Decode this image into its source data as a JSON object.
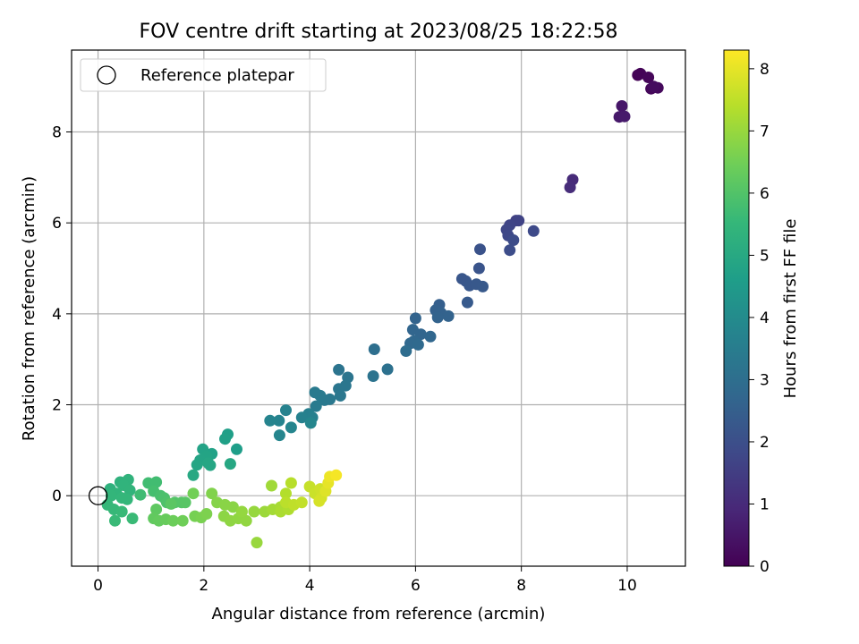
{
  "chart_data": {
    "type": "scatter",
    "title": "FOV centre drift starting at 2023/08/25 18:22:58",
    "xlabel": "Angular distance from reference (arcmin)",
    "ylabel": "Rotation from reference (arcmin)",
    "xlim": [
      -0.5,
      11.1
    ],
    "ylim": [
      -1.55,
      9.8
    ],
    "xticks": [
      0,
      2,
      4,
      6,
      8,
      10
    ],
    "yticks": [
      0,
      2,
      4,
      6,
      8
    ],
    "grid": true,
    "legend": {
      "position": "top-left",
      "entries": [
        "Reference platepar"
      ]
    },
    "reference_point": {
      "x": 0,
      "y": 0
    },
    "colorbar": {
      "label": "Hours from first FF file",
      "colormap": "viridis",
      "range": [
        0,
        8.3
      ],
      "ticks": [
        0,
        1,
        2,
        3,
        4,
        5,
        6,
        7,
        8
      ]
    },
    "points": [
      [
        10.2,
        9.25,
        0.05
      ],
      [
        10.25,
        9.28,
        0.08
      ],
      [
        10.4,
        9.2,
        0.12
      ],
      [
        10.45,
        8.95,
        0.15
      ],
      [
        10.58,
        8.97,
        0.2
      ],
      [
        10.5,
        9.0,
        0.25
      ],
      [
        9.9,
        8.57,
        0.5
      ],
      [
        9.85,
        8.33,
        0.55
      ],
      [
        9.95,
        8.34,
        0.6
      ],
      [
        8.97,
        6.95,
        1.0
      ],
      [
        8.92,
        6.78,
        1.05
      ],
      [
        7.9,
        6.05,
        1.6
      ],
      [
        7.95,
        6.05,
        1.65
      ],
      [
        7.78,
        5.95,
        1.7
      ],
      [
        7.72,
        5.85,
        1.75
      ],
      [
        7.75,
        5.72,
        1.8
      ],
      [
        8.23,
        5.82,
        1.85
      ],
      [
        7.85,
        5.62,
        1.9
      ],
      [
        7.78,
        5.4,
        1.95
      ],
      [
        7.22,
        5.42,
        2.1
      ],
      [
        7.2,
        5.0,
        2.15
      ],
      [
        6.88,
        4.77,
        2.2
      ],
      [
        6.95,
        4.72,
        2.22
      ],
      [
        7.02,
        4.62,
        2.25
      ],
      [
        7.15,
        4.65,
        2.28
      ],
      [
        7.27,
        4.6,
        2.3
      ],
      [
        6.98,
        4.25,
        2.35
      ],
      [
        6.45,
        4.2,
        2.5
      ],
      [
        6.38,
        4.08,
        2.55
      ],
      [
        6.48,
        4.02,
        2.58
      ],
      [
        6.62,
        3.95,
        2.6
      ],
      [
        6.42,
        3.92,
        2.62
      ],
      [
        6.0,
        3.9,
        2.65
      ],
      [
        5.95,
        3.65,
        2.7
      ],
      [
        6.1,
        3.55,
        2.72
      ],
      [
        6.28,
        3.5,
        2.75
      ],
      [
        5.97,
        3.4,
        2.78
      ],
      [
        5.9,
        3.35,
        2.8
      ],
      [
        6.05,
        3.32,
        2.82
      ],
      [
        5.22,
        3.22,
        3.0
      ],
      [
        5.82,
        3.18,
        2.95
      ],
      [
        4.55,
        2.77,
        3.2
      ],
      [
        4.72,
        2.6,
        3.22
      ],
      [
        5.47,
        2.78,
        3.1
      ],
      [
        5.2,
        2.63,
        3.15
      ],
      [
        4.68,
        2.42,
        3.25
      ],
      [
        4.55,
        2.35,
        3.28
      ],
      [
        4.58,
        2.2,
        3.3
      ],
      [
        4.38,
        2.12,
        3.35
      ],
      [
        4.28,
        2.1,
        3.38
      ],
      [
        4.2,
        2.2,
        3.4
      ],
      [
        4.1,
        2.27,
        3.42
      ],
      [
        4.12,
        1.97,
        3.45
      ],
      [
        3.98,
        1.8,
        3.6
      ],
      [
        4.05,
        1.72,
        3.62
      ],
      [
        3.85,
        1.72,
        3.65
      ],
      [
        3.55,
        1.88,
        3.7
      ],
      [
        3.42,
        1.65,
        3.72
      ],
      [
        3.25,
        1.65,
        3.75
      ],
      [
        3.65,
        1.5,
        3.78
      ],
      [
        3.43,
        1.33,
        3.8
      ],
      [
        4.02,
        1.6,
        3.82
      ],
      [
        2.62,
        1.02,
        4.6
      ],
      [
        2.45,
        1.35,
        4.65
      ],
      [
        2.4,
        1.25,
        4.7
      ],
      [
        2.15,
        0.92,
        4.75
      ],
      [
        1.98,
        1.02,
        4.8
      ],
      [
        2.05,
        0.87,
        4.82
      ],
      [
        1.93,
        0.78,
        4.85
      ],
      [
        1.87,
        0.68,
        4.88
      ],
      [
        2.08,
        0.72,
        4.9
      ],
      [
        2.12,
        0.67,
        4.92
      ],
      [
        2.5,
        0.7,
        4.95
      ],
      [
        1.8,
        0.45,
        4.98
      ],
      [
        0.23,
        0.15,
        5.3
      ],
      [
        0.42,
        0.3,
        5.32
      ],
      [
        0.57,
        0.35,
        5.35
      ],
      [
        0.48,
        0.23,
        5.38
      ],
      [
        0.6,
        0.12,
        5.4
      ],
      [
        0.35,
        0.05,
        5.42
      ],
      [
        0.25,
        0.0,
        5.45
      ],
      [
        0.45,
        -0.05,
        5.48
      ],
      [
        0.55,
        -0.08,
        5.5
      ],
      [
        0.18,
        -0.2,
        5.52
      ],
      [
        0.3,
        -0.3,
        5.55
      ],
      [
        0.45,
        -0.35,
        5.58
      ],
      [
        0.32,
        -0.55,
        5.6
      ],
      [
        0.65,
        -0.5,
        5.62
      ],
      [
        0.8,
        0.02,
        5.7
      ],
      [
        0.95,
        0.28,
        5.72
      ],
      [
        1.1,
        0.3,
        5.75
      ],
      [
        1.05,
        0.1,
        5.8
      ],
      [
        1.18,
        0.0,
        5.85
      ],
      [
        1.25,
        -0.05,
        5.9
      ],
      [
        1.3,
        -0.15,
        5.95
      ],
      [
        1.45,
        -0.15,
        6.0
      ],
      [
        1.58,
        -0.15,
        6.05
      ],
      [
        1.65,
        -0.15,
        6.1
      ],
      [
        1.38,
        -0.18,
        6.15
      ],
      [
        1.1,
        -0.3,
        6.2
      ],
      [
        1.05,
        -0.5,
        6.25
      ],
      [
        1.15,
        -0.55,
        6.3
      ],
      [
        1.28,
        -0.52,
        6.35
      ],
      [
        1.42,
        -0.55,
        6.4
      ],
      [
        1.6,
        -0.55,
        6.45
      ],
      [
        1.8,
        0.05,
        6.5
      ],
      [
        1.83,
        -0.45,
        6.55
      ],
      [
        1.95,
        -0.48,
        6.6
      ],
      [
        2.05,
        -0.4,
        6.65
      ],
      [
        2.15,
        0.05,
        6.7
      ],
      [
        2.25,
        -0.15,
        6.75
      ],
      [
        2.4,
        -0.2,
        6.8
      ],
      [
        2.55,
        -0.25,
        6.82
      ],
      [
        2.38,
        -0.45,
        6.85
      ],
      [
        2.5,
        -0.55,
        6.88
      ],
      [
        2.65,
        -0.5,
        6.9
      ],
      [
        2.8,
        -0.55,
        6.92
      ],
      [
        2.72,
        -0.35,
        6.95
      ],
      [
        2.95,
        -0.35,
        6.98
      ],
      [
        3.0,
        -1.03,
        7.0
      ],
      [
        3.15,
        -0.35,
        7.05
      ],
      [
        3.28,
        0.22,
        7.1
      ],
      [
        3.3,
        -0.3,
        7.15
      ],
      [
        3.45,
        -0.25,
        7.2
      ],
      [
        3.45,
        -0.35,
        7.25
      ],
      [
        3.6,
        -0.3,
        7.3
      ],
      [
        3.55,
        0.05,
        7.35
      ],
      [
        3.65,
        0.28,
        7.4
      ],
      [
        3.55,
        -0.15,
        7.45
      ],
      [
        3.7,
        -0.2,
        7.5
      ],
      [
        3.85,
        -0.15,
        7.55
      ],
      [
        4.0,
        0.2,
        7.6
      ],
      [
        4.1,
        0.05,
        7.65
      ],
      [
        4.2,
        0.15,
        7.7
      ],
      [
        4.22,
        -0.05,
        7.75
      ],
      [
        4.18,
        -0.12,
        7.8
      ],
      [
        4.3,
        0.1,
        7.9
      ],
      [
        4.35,
        0.28,
        8.0
      ],
      [
        4.38,
        0.42,
        8.1
      ],
      [
        4.5,
        0.45,
        8.2
      ]
    ]
  }
}
